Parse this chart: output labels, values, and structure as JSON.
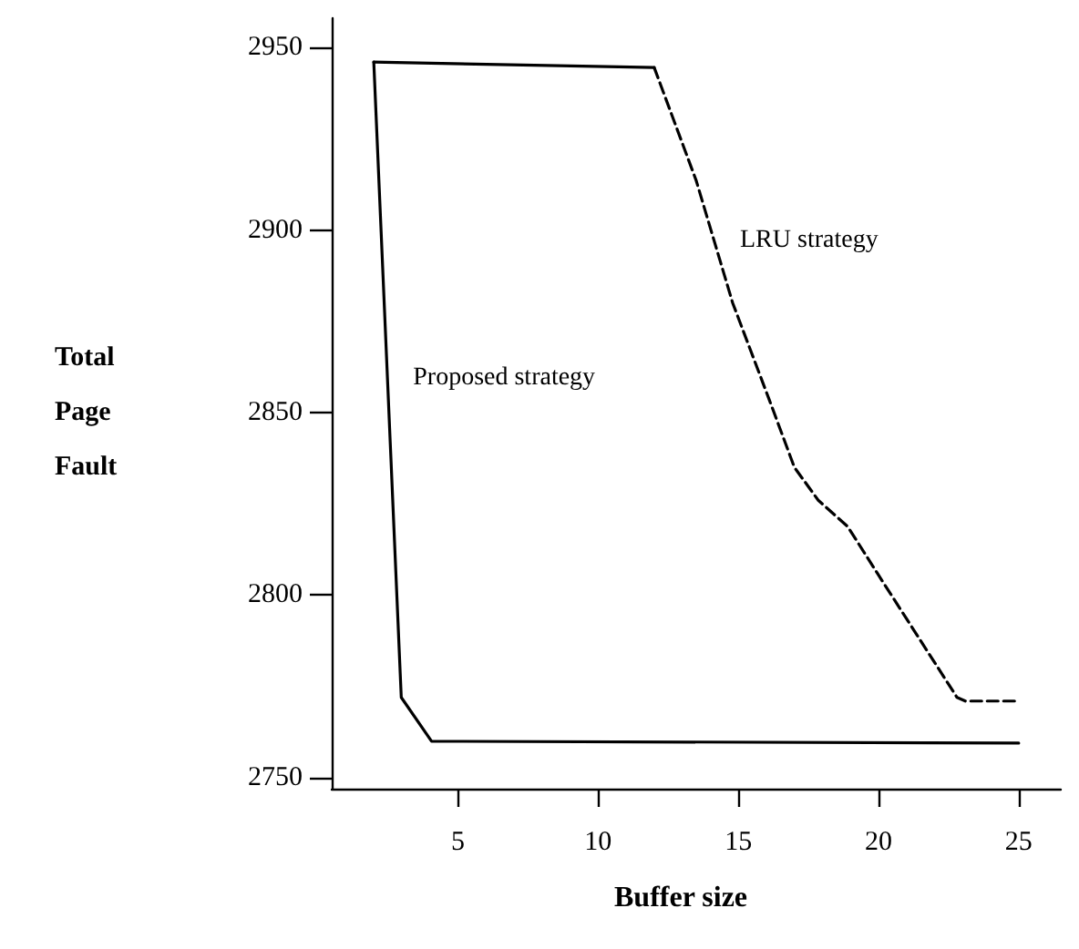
{
  "chart_data": {
    "type": "line",
    "xlabel": "Buffer size",
    "ylabel": "Total\nPage\nFault",
    "xlim": [
      0.5,
      26.5
    ],
    "ylim": [
      2747,
      2958
    ],
    "xticks": [
      5,
      10,
      15,
      20,
      25
    ],
    "yticks": [
      2750,
      2800,
      2850,
      2900,
      2950
    ],
    "grid": false,
    "legend": false,
    "marker": "none",
    "series": [
      {
        "name": "Proposed strategy",
        "color": "#000000",
        "line_style": "solid",
        "x": [
          2,
          2.98,
          4.06,
          25
        ],
        "values": [
          2946,
          2772,
          2760,
          2759.5
        ]
      },
      {
        "color": "#000000",
        "line_style": "solid",
        "x": [
          2,
          12
        ],
        "values": [
          2946,
          2944.5
        ]
      },
      {
        "name": "LRU strategy",
        "color": "#000000",
        "line_style": "dashed",
        "x": [
          12,
          13.5,
          14.8,
          16.1,
          17,
          17.85,
          18.9,
          20,
          22.8,
          23.1,
          25
        ],
        "values": [
          2944.5,
          2913.5,
          2880,
          2853.6,
          2835,
          2826,
          2818.8,
          2805.5,
          2772,
          2771,
          2771
        ]
      }
    ]
  }
}
